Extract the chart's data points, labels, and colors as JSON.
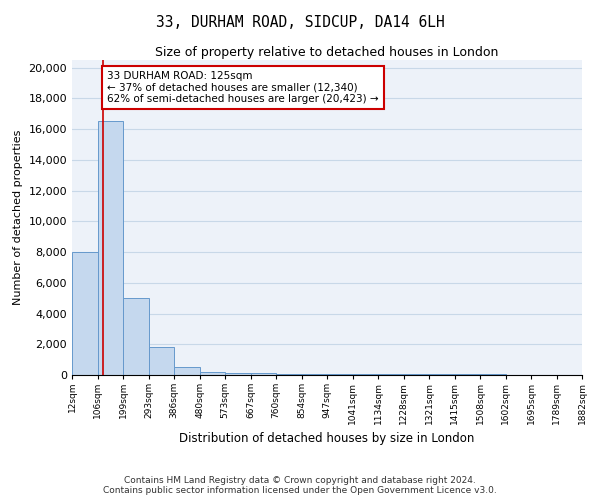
{
  "title": "33, DURHAM ROAD, SIDCUP, DA14 6LH",
  "subtitle": "Size of property relative to detached houses in London",
  "xlabel": "Distribution of detached houses by size in London",
  "ylabel": "Number of detached properties",
  "bar_color": "#c5d8ee",
  "bar_edge_color": "#6699cc",
  "grid_color": "#c8d8e8",
  "background_color": "#edf2f9",
  "annotation_line_color": "#cc0000",
  "annotation_box_color": "#cc0000",
  "property_sqm": 125,
  "annotation_text_line1": "33 DURHAM ROAD: 125sqm",
  "annotation_text_line2": "← 37% of detached houses are smaller (12,340)",
  "annotation_text_line3": "62% of semi-detached houses are larger (20,423) →",
  "footer_line1": "Contains HM Land Registry data © Crown copyright and database right 2024.",
  "footer_line2": "Contains public sector information licensed under the Open Government Licence v3.0.",
  "bin_edges": [
    12,
    106,
    199,
    293,
    386,
    480,
    573,
    667,
    760,
    854,
    947,
    1041,
    1134,
    1228,
    1321,
    1415,
    1508,
    1602,
    1695,
    1789,
    1882
  ],
  "bin_labels": [
    "12sqm",
    "106sqm",
    "199sqm",
    "293sqm",
    "386sqm",
    "480sqm",
    "573sqm",
    "667sqm",
    "760sqm",
    "854sqm",
    "947sqm",
    "1041sqm",
    "1134sqm",
    "1228sqm",
    "1321sqm",
    "1415sqm",
    "1508sqm",
    "1602sqm",
    "1695sqm",
    "1789sqm",
    "1882sqm"
  ],
  "bar_heights": [
    8000,
    16500,
    5000,
    1800,
    500,
    220,
    150,
    110,
    90,
    75,
    65,
    60,
    55,
    50,
    45,
    40,
    35,
    30,
    25,
    20
  ],
  "ylim": [
    0,
    20500
  ],
  "yticks": [
    0,
    2000,
    4000,
    6000,
    8000,
    10000,
    12000,
    14000,
    16000,
    18000,
    20000
  ]
}
